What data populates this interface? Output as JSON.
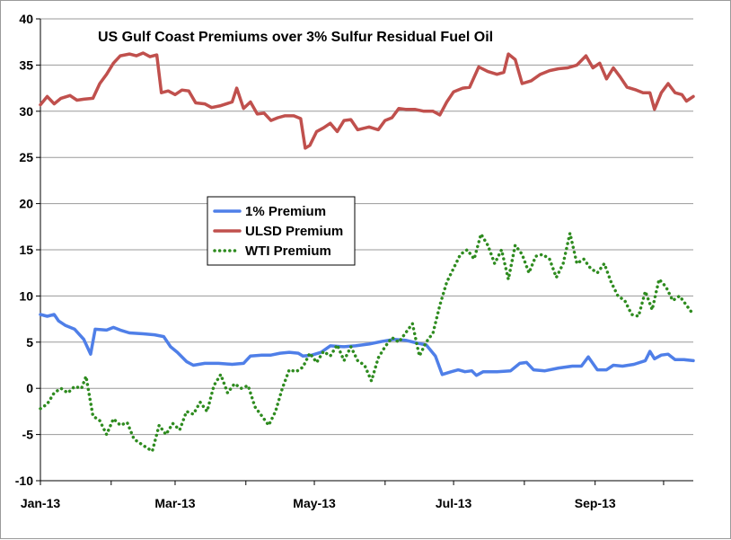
{
  "chart_data": {
    "type": "line",
    "title": "US Gulf Coast Premiums over 3% Sulfur Residual Fuel Oil",
    "xlabel": "",
    "ylabel": "",
    "ylim": [
      -10,
      40
    ],
    "yticks": [
      -10,
      -5,
      0,
      5,
      10,
      15,
      20,
      25,
      30,
      35,
      40
    ],
    "xlim": [
      "2013-01-01",
      "2013-10-14"
    ],
    "xticks": [
      {
        "date": "2013-01-01",
        "label": "Jan-13"
      },
      {
        "date": "2013-03-01",
        "label": "Mar-13"
      },
      {
        "date": "2013-05-01",
        "label": "May-13"
      },
      {
        "date": "2013-07-01",
        "label": "Jul-13"
      },
      {
        "date": "2013-09-01",
        "label": "Sep-13"
      }
    ],
    "grid": "horizontal",
    "legend_position": "center-left",
    "series": [
      {
        "name": "1% Premium",
        "color": "#4f7fe8",
        "style": "solid",
        "points": [
          [
            "2013-01-01",
            8.0
          ],
          [
            "2013-01-04",
            7.8
          ],
          [
            "2013-01-07",
            8.0
          ],
          [
            "2013-01-09",
            7.3
          ],
          [
            "2013-01-12",
            6.8
          ],
          [
            "2013-01-16",
            6.4
          ],
          [
            "2013-01-20",
            5.3
          ],
          [
            "2013-01-23",
            3.7
          ],
          [
            "2013-01-25",
            6.4
          ],
          [
            "2013-01-30",
            6.3
          ],
          [
            "2013-02-02",
            6.6
          ],
          [
            "2013-02-05",
            6.3
          ],
          [
            "2013-02-09",
            6.0
          ],
          [
            "2013-02-15",
            5.9
          ],
          [
            "2013-02-20",
            5.8
          ],
          [
            "2013-02-24",
            5.6
          ],
          [
            "2013-02-27",
            4.5
          ],
          [
            "2013-03-02",
            3.9
          ],
          [
            "2013-03-06",
            2.9
          ],
          [
            "2013-03-09",
            2.5
          ],
          [
            "2013-03-14",
            2.7
          ],
          [
            "2013-03-20",
            2.7
          ],
          [
            "2013-03-26",
            2.6
          ],
          [
            "2013-03-31",
            2.7
          ],
          [
            "2013-04-03",
            3.5
          ],
          [
            "2013-04-08",
            3.6
          ],
          [
            "2013-04-12",
            3.6
          ],
          [
            "2013-04-16",
            3.8
          ],
          [
            "2013-04-20",
            3.9
          ],
          [
            "2013-04-24",
            3.8
          ],
          [
            "2013-04-26",
            3.5
          ],
          [
            "2013-04-30",
            3.6
          ],
          [
            "2013-05-04",
            3.9
          ],
          [
            "2013-05-08",
            4.6
          ],
          [
            "2013-05-14",
            4.5
          ],
          [
            "2013-05-19",
            4.6
          ],
          [
            "2013-05-25",
            4.8
          ],
          [
            "2013-05-31",
            5.1
          ],
          [
            "2013-06-05",
            5.3
          ],
          [
            "2013-06-10",
            5.2
          ],
          [
            "2013-06-15",
            4.9
          ],
          [
            "2013-06-19",
            4.7
          ],
          [
            "2013-06-23",
            3.5
          ],
          [
            "2013-06-26",
            1.5
          ],
          [
            "2013-06-30",
            1.8
          ],
          [
            "2013-07-03",
            2.0
          ],
          [
            "2013-07-06",
            1.8
          ],
          [
            "2013-07-09",
            1.9
          ],
          [
            "2013-07-11",
            1.4
          ],
          [
            "2013-07-14",
            1.8
          ],
          [
            "2013-07-20",
            1.8
          ],
          [
            "2013-07-26",
            1.9
          ],
          [
            "2013-07-30",
            2.7
          ],
          [
            "2013-08-02",
            2.8
          ],
          [
            "2013-08-05",
            2.0
          ],
          [
            "2013-08-10",
            1.9
          ],
          [
            "2013-08-16",
            2.2
          ],
          [
            "2013-08-22",
            2.4
          ],
          [
            "2013-08-26",
            2.4
          ],
          [
            "2013-08-29",
            3.4
          ],
          [
            "2013-09-02",
            2.0
          ],
          [
            "2013-09-06",
            2.0
          ],
          [
            "2013-09-09",
            2.5
          ],
          [
            "2013-09-13",
            2.4
          ],
          [
            "2013-09-18",
            2.6
          ],
          [
            "2013-09-23",
            3.0
          ],
          [
            "2013-09-25",
            4.0
          ],
          [
            "2013-09-27",
            3.2
          ],
          [
            "2013-09-30",
            3.6
          ],
          [
            "2013-10-03",
            3.7
          ],
          [
            "2013-10-06",
            3.1
          ],
          [
            "2013-10-10",
            3.1
          ],
          [
            "2013-10-14",
            3.0
          ]
        ]
      },
      {
        "name": "ULSD Premium",
        "color": "#c0504d",
        "style": "solid",
        "points": [
          [
            "2013-01-01",
            30.7
          ],
          [
            "2013-01-04",
            31.6
          ],
          [
            "2013-01-07",
            30.8
          ],
          [
            "2013-01-10",
            31.4
          ],
          [
            "2013-01-14",
            31.7
          ],
          [
            "2013-01-17",
            31.2
          ],
          [
            "2013-01-20",
            31.3
          ],
          [
            "2013-01-24",
            31.4
          ],
          [
            "2013-01-27",
            33.0
          ],
          [
            "2013-01-30",
            34.0
          ],
          [
            "2013-02-02",
            35.2
          ],
          [
            "2013-02-05",
            36.0
          ],
          [
            "2013-02-09",
            36.2
          ],
          [
            "2013-02-12",
            36.0
          ],
          [
            "2013-02-15",
            36.3
          ],
          [
            "2013-02-18",
            35.9
          ],
          [
            "2013-02-21",
            36.1
          ],
          [
            "2013-02-23",
            32.0
          ],
          [
            "2013-02-26",
            32.2
          ],
          [
            "2013-03-01",
            31.8
          ],
          [
            "2013-03-04",
            32.3
          ],
          [
            "2013-03-07",
            32.2
          ],
          [
            "2013-03-10",
            30.9
          ],
          [
            "2013-03-14",
            30.8
          ],
          [
            "2013-03-17",
            30.4
          ],
          [
            "2013-03-21",
            30.6
          ],
          [
            "2013-03-26",
            31.0
          ],
          [
            "2013-03-28",
            32.5
          ],
          [
            "2013-03-31",
            30.3
          ],
          [
            "2013-04-03",
            31.0
          ],
          [
            "2013-04-06",
            29.7
          ],
          [
            "2013-04-09",
            29.8
          ],
          [
            "2013-04-12",
            29.0
          ],
          [
            "2013-04-15",
            29.3
          ],
          [
            "2013-04-18",
            29.5
          ],
          [
            "2013-04-22",
            29.5
          ],
          [
            "2013-04-25",
            29.2
          ],
          [
            "2013-04-27",
            26.0
          ],
          [
            "2013-04-29",
            26.3
          ],
          [
            "2013-05-02",
            27.8
          ],
          [
            "2013-05-05",
            28.2
          ],
          [
            "2013-05-08",
            28.7
          ],
          [
            "2013-05-11",
            27.8
          ],
          [
            "2013-05-14",
            29.0
          ],
          [
            "2013-05-17",
            29.1
          ],
          [
            "2013-05-20",
            28.0
          ],
          [
            "2013-05-25",
            28.3
          ],
          [
            "2013-05-29",
            28.0
          ],
          [
            "2013-06-01",
            29.0
          ],
          [
            "2013-06-04",
            29.3
          ],
          [
            "2013-06-07",
            30.3
          ],
          [
            "2013-06-10",
            30.2
          ],
          [
            "2013-06-14",
            30.2
          ],
          [
            "2013-06-18",
            30.0
          ],
          [
            "2013-06-22",
            30.0
          ],
          [
            "2013-06-25",
            29.6
          ],
          [
            "2013-06-28",
            31.0
          ],
          [
            "2013-07-01",
            32.1
          ],
          [
            "2013-07-05",
            32.5
          ],
          [
            "2013-07-08",
            32.6
          ],
          [
            "2013-07-12",
            34.8
          ],
          [
            "2013-07-16",
            34.3
          ],
          [
            "2013-07-20",
            34.0
          ],
          [
            "2013-07-23",
            34.2
          ],
          [
            "2013-07-25",
            36.2
          ],
          [
            "2013-07-28",
            35.6
          ],
          [
            "2013-07-31",
            33.0
          ],
          [
            "2013-08-04",
            33.3
          ],
          [
            "2013-08-08",
            34.0
          ],
          [
            "2013-08-12",
            34.4
          ],
          [
            "2013-08-16",
            34.6
          ],
          [
            "2013-08-20",
            34.7
          ],
          [
            "2013-08-24",
            35.0
          ],
          [
            "2013-08-28",
            36.0
          ],
          [
            "2013-08-31",
            34.7
          ],
          [
            "2013-09-03",
            35.2
          ],
          [
            "2013-09-06",
            33.5
          ],
          [
            "2013-09-09",
            34.7
          ],
          [
            "2013-09-12",
            33.7
          ],
          [
            "2013-09-15",
            32.6
          ],
          [
            "2013-09-19",
            32.3
          ],
          [
            "2013-09-22",
            32.0
          ],
          [
            "2013-09-25",
            32.0
          ],
          [
            "2013-09-27",
            30.2
          ],
          [
            "2013-09-30",
            32.0
          ],
          [
            "2013-10-03",
            33.0
          ],
          [
            "2013-10-06",
            32.0
          ],
          [
            "2013-10-09",
            31.8
          ],
          [
            "2013-10-11",
            31.1
          ],
          [
            "2013-10-14",
            31.6
          ]
        ]
      },
      {
        "name": "WTI Premium",
        "color": "#2e8b1f",
        "style": "dotted",
        "points": [
          [
            "2013-01-01",
            -2.2
          ],
          [
            "2013-01-04",
            -1.7
          ],
          [
            "2013-01-07",
            -0.5
          ],
          [
            "2013-01-10",
            0.0
          ],
          [
            "2013-01-13",
            -0.5
          ],
          [
            "2013-01-16",
            0.2
          ],
          [
            "2013-01-19",
            0.0
          ],
          [
            "2013-01-21",
            1.3
          ],
          [
            "2013-01-24",
            -3.0
          ],
          [
            "2013-01-27",
            -3.5
          ],
          [
            "2013-01-30",
            -5.0
          ],
          [
            "2013-02-02",
            -3.3
          ],
          [
            "2013-02-05",
            -4.0
          ],
          [
            "2013-02-08",
            -3.7
          ],
          [
            "2013-02-11",
            -5.5
          ],
          [
            "2013-02-14",
            -6.0
          ],
          [
            "2013-02-17",
            -6.5
          ],
          [
            "2013-02-19",
            -6.8
          ],
          [
            "2013-02-22",
            -4.0
          ],
          [
            "2013-02-25",
            -5.0
          ],
          [
            "2013-02-28",
            -3.8
          ],
          [
            "2013-03-03",
            -4.5
          ],
          [
            "2013-03-06",
            -2.5
          ],
          [
            "2013-03-09",
            -2.8
          ],
          [
            "2013-03-12",
            -1.5
          ],
          [
            "2013-03-15",
            -2.5
          ],
          [
            "2013-03-18",
            0.3
          ],
          [
            "2013-03-21",
            1.5
          ],
          [
            "2013-03-24",
            -0.5
          ],
          [
            "2013-03-27",
            0.5
          ],
          [
            "2013-03-30",
            0.0
          ],
          [
            "2013-04-02",
            0.3
          ],
          [
            "2013-04-05",
            -2.0
          ],
          [
            "2013-04-08",
            -3.0
          ],
          [
            "2013-04-11",
            -4.0
          ],
          [
            "2013-04-14",
            -2.5
          ],
          [
            "2013-04-17",
            0.0
          ],
          [
            "2013-04-20",
            2.0
          ],
          [
            "2013-04-23",
            1.8
          ],
          [
            "2013-04-26",
            2.3
          ],
          [
            "2013-04-29",
            3.8
          ],
          [
            "2013-05-02",
            2.8
          ],
          [
            "2013-05-05",
            4.0
          ],
          [
            "2013-05-08",
            3.5
          ],
          [
            "2013-05-11",
            4.7
          ],
          [
            "2013-05-14",
            3.0
          ],
          [
            "2013-05-17",
            4.5
          ],
          [
            "2013-05-20",
            3.0
          ],
          [
            "2013-05-23",
            2.5
          ],
          [
            "2013-05-26",
            0.8
          ],
          [
            "2013-05-29",
            3.3
          ],
          [
            "2013-06-01",
            4.5
          ],
          [
            "2013-06-04",
            5.5
          ],
          [
            "2013-06-07",
            5.0
          ],
          [
            "2013-06-10",
            6.0
          ],
          [
            "2013-06-13",
            7.0
          ],
          [
            "2013-06-16",
            3.5
          ],
          [
            "2013-06-19",
            5.0
          ],
          [
            "2013-06-22",
            6.0
          ],
          [
            "2013-06-25",
            9.0
          ],
          [
            "2013-06-28",
            11.5
          ],
          [
            "2013-07-01",
            13.0
          ],
          [
            "2013-07-04",
            14.5
          ],
          [
            "2013-07-07",
            15.0
          ],
          [
            "2013-07-10",
            14.0
          ],
          [
            "2013-07-13",
            16.7
          ],
          [
            "2013-07-16",
            15.5
          ],
          [
            "2013-07-19",
            13.5
          ],
          [
            "2013-07-22",
            15.0
          ],
          [
            "2013-07-25",
            11.8
          ],
          [
            "2013-07-28",
            15.5
          ],
          [
            "2013-07-31",
            14.5
          ],
          [
            "2013-08-03",
            12.5
          ],
          [
            "2013-08-06",
            14.3
          ],
          [
            "2013-08-09",
            14.5
          ],
          [
            "2013-08-12",
            14.0
          ],
          [
            "2013-08-15",
            12.0
          ],
          [
            "2013-08-18",
            13.5
          ],
          [
            "2013-08-21",
            16.8
          ],
          [
            "2013-08-24",
            13.5
          ],
          [
            "2013-08-27",
            14.0
          ],
          [
            "2013-08-30",
            13.0
          ],
          [
            "2013-09-02",
            12.5
          ],
          [
            "2013-09-05",
            13.5
          ],
          [
            "2013-09-08",
            11.5
          ],
          [
            "2013-09-11",
            10.0
          ],
          [
            "2013-09-14",
            9.5
          ],
          [
            "2013-09-17",
            8.0
          ],
          [
            "2013-09-20",
            7.8
          ],
          [
            "2013-09-23",
            10.5
          ],
          [
            "2013-09-26",
            8.5
          ],
          [
            "2013-09-29",
            11.8
          ],
          [
            "2013-10-02",
            11.0
          ],
          [
            "2013-10-05",
            9.5
          ],
          [
            "2013-10-08",
            10.0
          ],
          [
            "2013-10-11",
            9.0
          ],
          [
            "2013-10-14",
            8.0
          ]
        ]
      }
    ]
  }
}
